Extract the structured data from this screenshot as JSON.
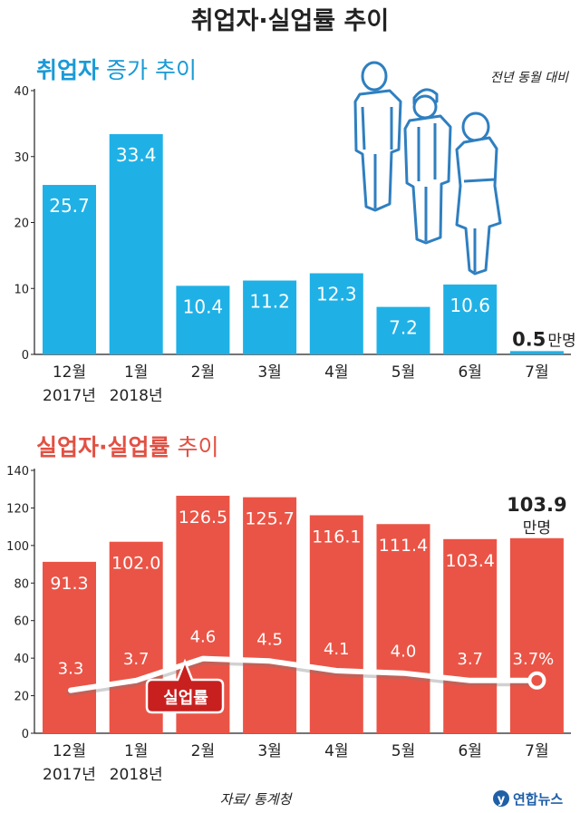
{
  "title": "취업자·실업률 추이",
  "source": "자료/ 통계청",
  "logo": "연합뉴스",
  "colors": {
    "blue": "#1fb1e6",
    "blue_title": "#1a9ad6",
    "red": "#ea5446",
    "red_title": "#e25043",
    "line": "#ffffff",
    "axis": "#222222",
    "text": "#222222"
  },
  "chart_data": [
    {
      "type": "bar",
      "title_main": "취업자",
      "title_sub": "증가 추이",
      "note": "전년 동월 대비",
      "categories": [
        "12월",
        "1월",
        "2월",
        "3월",
        "4월",
        "5월",
        "6월",
        "7월"
      ],
      "year_labels": [
        "2017년",
        "2018년",
        "",
        "",
        "",
        "",
        "",
        ""
      ],
      "values": [
        25.7,
        33.4,
        10.4,
        11.2,
        12.3,
        7.2,
        10.6,
        0.5
      ],
      "value_labels": [
        "25.7",
        "33.4",
        "10.4",
        "11.2",
        "12.3",
        "7.2",
        "10.6",
        "0.5"
      ],
      "last_unit": "만명",
      "yticks": [
        0,
        10,
        20,
        30,
        40
      ],
      "ylim": [
        0,
        40
      ]
    },
    {
      "type": "bar",
      "title": "실업자·실업률",
      "title_sub": "추이",
      "categories": [
        "12월",
        "1월",
        "2월",
        "3월",
        "4월",
        "5월",
        "6월",
        "7월"
      ],
      "year_labels": [
        "2017년",
        "2018년",
        "",
        "",
        "",
        "",
        "",
        ""
      ],
      "values": [
        91.3,
        102.0,
        126.5,
        125.7,
        116.1,
        111.4,
        103.4,
        103.9
      ],
      "value_labels": [
        "91.3",
        "102.0",
        "126.5",
        "125.7",
        "116.1",
        "111.4",
        "103.4",
        "103.9"
      ],
      "last_unit": "만명",
      "yticks": [
        0,
        20,
        40,
        60,
        80,
        100,
        120,
        140
      ],
      "ylim": [
        0,
        140
      ],
      "rate_series": {
        "name": "실업률",
        "values": [
          3.3,
          3.7,
          4.6,
          4.5,
          4.1,
          4.0,
          3.7,
          3.7
        ],
        "labels": [
          "3.3",
          "3.7",
          "4.6",
          "4.5",
          "4.1",
          "4.0",
          "3.7",
          "3.7%"
        ]
      }
    }
  ]
}
